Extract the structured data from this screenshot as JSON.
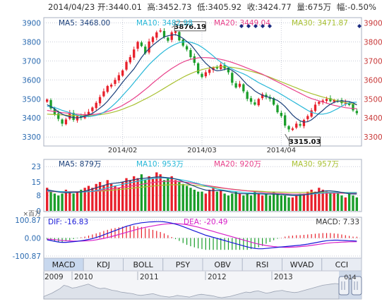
{
  "header": {
    "date": "2014/04/23",
    "open_label": "开:",
    "open": "3440.01",
    "high_label": "高:",
    "high": "3452.73",
    "low_label": "低:",
    "low": "3405.92",
    "close_label": "收:",
    "close": "3424.77",
    "volume_label": "量:",
    "volume": "675万",
    "change_label": "幅:",
    "change": "-0.50%"
  },
  "colors": {
    "up": "#e8202b",
    "down": "#1a9e2a",
    "ma5": "#1a3f7a",
    "ma10": "#28b8d8",
    "ma20": "#e8408a",
    "ma30": "#a8c030",
    "dif": "#1818d8",
    "dea": "#d820c8",
    "axis_left": "#2a6ab0",
    "axis_right": "#c83838",
    "grid": "#c8ccd8"
  },
  "chart_data": [
    {
      "type": "candlestick",
      "legend": [
        {
          "label": "MA5: 3468.00",
          "color": "#1a3f7a"
        },
        {
          "label": "MA10: 3482.98",
          "color": "#28b8d8"
        },
        {
          "label": "MA20: 3449.04",
          "color": "#e8408a"
        },
        {
          "label": "MA30: 3471.87",
          "color": "#a8c030"
        }
      ],
      "ylim": [
        3260,
        3920
      ],
      "yticks": [
        3300,
        3400,
        3500,
        3600,
        3700,
        3800,
        3900
      ],
      "ytick_labels": [
        "3300",
        "3400",
        "3500",
        "3600",
        "3700",
        "3800",
        "3900"
      ],
      "xtick_labels": [
        {
          "label": "2014/02",
          "index": 20
        },
        {
          "label": "2014/03",
          "index": 41
        },
        {
          "label": "2014/04",
          "index": 62
        }
      ],
      "annotations": [
        {
          "label": "3876.19",
          "index": 33,
          "value": 3876.19
        },
        {
          "label": "3315.03",
          "index": 63,
          "value": 3315.03
        }
      ],
      "close": [
        3497,
        3450,
        3420,
        3395,
        3370,
        3392,
        3430,
        3390,
        3410,
        3402,
        3420,
        3432,
        3455,
        3480,
        3510,
        3540,
        3568,
        3575,
        3600,
        3625,
        3650,
        3695,
        3720,
        3760,
        3800,
        3778,
        3740,
        3802,
        3825,
        3850,
        3860,
        3825,
        3806,
        3850,
        3855,
        3808,
        3780,
        3760,
        3720,
        3690,
        3635,
        3615,
        3640,
        3655,
        3665,
        3660,
        3680,
        3660,
        3640,
        3585,
        3560,
        3580,
        3540,
        3500,
        3485,
        3470,
        3500,
        3525,
        3510,
        3500,
        3470,
        3430,
        3410,
        3360,
        3340,
        3345,
        3370,
        3360,
        3390,
        3410,
        3440,
        3470,
        3485,
        3492,
        3500,
        3488,
        3494,
        3490,
        3478,
        3482,
        3468,
        3440,
        3425
      ],
      "ma5": [
        3470,
        3460,
        3448,
        3432,
        3420,
        3412,
        3407,
        3402,
        3400,
        3403,
        3410,
        3416,
        3424,
        3437,
        3452,
        3468,
        3488,
        3512,
        3536,
        3562,
        3588,
        3612,
        3635,
        3658,
        3688,
        3718,
        3744,
        3764,
        3782,
        3798,
        3814,
        3826,
        3832,
        3836,
        3838,
        3830,
        3818,
        3802,
        3786,
        3762,
        3736,
        3710,
        3688,
        3670,
        3655,
        3648,
        3650,
        3655,
        3660,
        3650,
        3636,
        3618,
        3596,
        3574,
        3560,
        3542,
        3530,
        3520,
        3512,
        3508,
        3500,
        3492,
        3478,
        3460,
        3438,
        3415,
        3398,
        3385,
        3378,
        3380,
        3390,
        3406,
        3424,
        3440,
        3458,
        3472,
        3482,
        3488,
        3490,
        3488,
        3486,
        3480,
        3468
      ],
      "ma10": [
        3462,
        3459,
        3455,
        3448,
        3440,
        3434,
        3428,
        3422,
        3415,
        3410,
        3408,
        3407,
        3410,
        3414,
        3420,
        3430,
        3442,
        3458,
        3476,
        3496,
        3518,
        3540,
        3562,
        3586,
        3610,
        3634,
        3658,
        3680,
        3700,
        3718,
        3736,
        3752,
        3766,
        3778,
        3788,
        3796,
        3800,
        3800,
        3798,
        3792,
        3784,
        3772,
        3758,
        3742,
        3726,
        3708,
        3694,
        3680,
        3668,
        3658,
        3648,
        3640,
        3632,
        3622,
        3610,
        3598,
        3586,
        3576,
        3566,
        3556,
        3546,
        3536,
        3524,
        3512,
        3500,
        3488,
        3476,
        3464,
        3452,
        3440,
        3430,
        3424,
        3420,
        3420,
        3424,
        3430,
        3440,
        3450,
        3462,
        3472,
        3478,
        3482,
        3483
      ],
      "ma20": [
        3440,
        3437,
        3434,
        3431,
        3428,
        3426,
        3424,
        3422,
        3420,
        3418,
        3417,
        3417,
        3418,
        3420,
        3424,
        3428,
        3434,
        3440,
        3448,
        3456,
        3466,
        3478,
        3490,
        3504,
        3518,
        3534,
        3550,
        3566,
        3584,
        3600,
        3616,
        3632,
        3646,
        3660,
        3672,
        3684,
        3694,
        3702,
        3708,
        3712,
        3716,
        3717,
        3717,
        3716,
        3714,
        3712,
        3708,
        3704,
        3698,
        3692,
        3685,
        3678,
        3670,
        3662,
        3654,
        3646,
        3638,
        3630,
        3620,
        3610,
        3600,
        3590,
        3580,
        3570,
        3560,
        3550,
        3540,
        3530,
        3520,
        3510,
        3502,
        3496,
        3490,
        3484,
        3478,
        3472,
        3466,
        3462,
        3458,
        3454,
        3452,
        3450,
        3449
      ],
      "ma30": [
        3420,
        3419,
        3418,
        3417,
        3416,
        3415,
        3414,
        3413,
        3412,
        3412,
        3412,
        3412,
        3413,
        3415,
        3417,
        3420,
        3424,
        3428,
        3433,
        3439,
        3446,
        3454,
        3462,
        3470,
        3480,
        3490,
        3500,
        3510,
        3521,
        3532,
        3544,
        3556,
        3568,
        3580,
        3592,
        3603,
        3614,
        3624,
        3633,
        3641,
        3648,
        3654,
        3659,
        3663,
        3666,
        3668,
        3669,
        3669,
        3668,
        3666,
        3663,
        3659,
        3655,
        3650,
        3645,
        3640,
        3634,
        3628,
        3621,
        3614,
        3606,
        3598,
        3590,
        3582,
        3574,
        3566,
        3558,
        3550,
        3542,
        3535,
        3528,
        3522,
        3516,
        3510,
        3505,
        3500,
        3495,
        3490,
        3485,
        3480,
        3477,
        3474,
        3472
      ]
    },
    {
      "type": "bar",
      "legend": [
        {
          "label": "MA5: 879万",
          "color": "#1a3f7a"
        },
        {
          "label": "MA10: 953万",
          "color": "#28b8d8"
        },
        {
          "label": "MA20: 920万",
          "color": "#e8408a"
        },
        {
          "label": "MA30: 957万",
          "color": "#a8c030"
        }
      ],
      "ylim": [
        0,
        26
      ],
      "yticks": [
        0,
        8,
        15,
        23
      ],
      "ytick_labels": [
        "0",
        "8",
        "15",
        "23"
      ],
      "unit_label": "×百万",
      "values": [
        12,
        10,
        9,
        8,
        9,
        11,
        10,
        9,
        10,
        11,
        12,
        13,
        12,
        14,
        15,
        13,
        16,
        14,
        13,
        12,
        15,
        17,
        16,
        18,
        17,
        19,
        16,
        18,
        17,
        20,
        19,
        16,
        17,
        18,
        16,
        15,
        14,
        13,
        12,
        11,
        10,
        10,
        9,
        11,
        12,
        10,
        11,
        9,
        8,
        9,
        10,
        9,
        8,
        9,
        8,
        10,
        9,
        8,
        9,
        8,
        10,
        9,
        8,
        8,
        7,
        7,
        8,
        9,
        9,
        10,
        11,
        10,
        12,
        11,
        10,
        9,
        9,
        10,
        8,
        7,
        9,
        8,
        7
      ],
      "ma5": [
        11,
        10.6,
        10.2,
        9.8,
        9.6,
        9.4,
        9.5,
        9.6,
        9.7,
        9.9,
        10.2,
        10.8,
        11.4,
        12,
        12.6,
        13.2,
        13.8,
        14.2,
        14.4,
        14.6,
        15,
        15.4,
        15.8,
        16.2,
        16.6,
        16.8,
        17,
        17.2,
        17.4,
        17.6,
        17.6,
        17.4,
        17.2,
        17,
        16.6,
        16,
        15.2,
        14.4,
        13.6,
        12.8,
        12,
        11.4,
        10.8,
        10.6,
        10.5,
        10.6,
        10.6,
        10.4,
        10,
        9.6,
        9.2,
        9,
        8.9,
        8.9,
        8.9,
        8.9,
        8.9,
        8.8,
        8.7,
        8.7,
        8.7,
        8.6,
        8.5,
        8.4,
        8.2,
        8,
        8,
        8.1,
        8.3,
        8.6,
        9,
        9.4,
        9.8,
        10.2,
        10.4,
        10.4,
        10.2,
        10,
        9.6,
        9.2,
        8.9,
        8.8,
        8.8
      ],
      "ma10": [
        10.4,
        10.3,
        10.2,
        10.1,
        10,
        9.9,
        9.8,
        9.8,
        9.8,
        9.8,
        9.9,
        10,
        10.2,
        10.6,
        11,
        11.5,
        12,
        12.5,
        13,
        13.4,
        13.8,
        14.2,
        14.6,
        15,
        15.4,
        15.8,
        16.2,
        16.5,
        16.8,
        17,
        17.1,
        17.1,
        17,
        16.8,
        16.6,
        16.3,
        16,
        15.6,
        15.2,
        14.7,
        14.2,
        13.6,
        13,
        12.4,
        11.9,
        11.4,
        11,
        10.7,
        10.4,
        10.2,
        10,
        9.8,
        9.6,
        9.4,
        9.3,
        9.2,
        9.1,
        9,
        8.9,
        8.8,
        8.8,
        8.7,
        8.6,
        8.5,
        8.4,
        8.3,
        8.3,
        8.3,
        8.4,
        8.5,
        8.7,
        8.9,
        9.1,
        9.3,
        9.5,
        9.6,
        9.6,
        9.6,
        9.6,
        9.5,
        9.5,
        9.5,
        9.5
      ],
      "ma20": [
        10,
        10,
        10,
        10,
        10,
        10,
        10,
        10,
        10,
        10,
        10,
        10,
        10.1,
        10.3,
        10.5,
        10.8,
        11.1,
        11.4,
        11.7,
        12,
        12.3,
        12.6,
        12.9,
        13.2,
        13.5,
        13.8,
        14.1,
        14.4,
        14.7,
        15,
        15.2,
        15.3,
        15.4,
        15.4,
        15.3,
        15.2,
        15,
        14.8,
        14.5,
        14.2,
        13.9,
        13.6,
        13.3,
        13,
        12.7,
        12.4,
        12.1,
        11.8,
        11.5,
        11.2,
        11,
        10.8,
        10.6,
        10.4,
        10.2,
        10,
        9.8,
        9.6,
        9.4,
        9.3,
        9.2,
        9.1,
        9,
        8.9,
        8.8,
        8.7,
        8.7,
        8.7,
        8.7,
        8.8,
        8.9,
        9,
        9.1,
        9.2,
        9.2,
        9.2,
        9.2,
        9.2,
        9.2,
        9.2,
        9.2,
        9.2,
        9.2
      ],
      "ma30": [
        10,
        10,
        10,
        10,
        10,
        10,
        10,
        10,
        10,
        10,
        10,
        10,
        10.1,
        10.2,
        10.3,
        10.4,
        10.5,
        10.7,
        10.9,
        11.1,
        11.3,
        11.5,
        11.7,
        11.9,
        12.1,
        12.3,
        12.5,
        12.7,
        12.9,
        13.1,
        13.3,
        13.4,
        13.5,
        13.6,
        13.6,
        13.6,
        13.6,
        13.5,
        13.4,
        13.3,
        13.1,
        12.9,
        12.7,
        12.5,
        12.3,
        12.1,
        11.9,
        11.7,
        11.5,
        11.3,
        11.1,
        10.9,
        10.7,
        10.5,
        10.4,
        10.3,
        10.2,
        10.1,
        10,
        9.9,
        9.8,
        9.8,
        9.7,
        9.7,
        9.6,
        9.6,
        9.6,
        9.6,
        9.6,
        9.6,
        9.6,
        9.6,
        9.6,
        9.6,
        9.6,
        9.6,
        9.6,
        9.6,
        9.6,
        9.6,
        9.6,
        9.6,
        9.6
      ]
    },
    {
      "type": "macd",
      "legend": [
        {
          "label": "DIF: -16.83",
          "color": "#1818d8"
        },
        {
          "label": "DEA: -20.49",
          "color": "#d820c8"
        },
        {
          "label": "MACD: 7.33",
          "color": "#333333"
        }
      ],
      "ylim": [
        -100.87,
        100.87
      ],
      "yticks": [
        100.87,
        0,
        -100.87
      ],
      "ytick_labels": [
        "100.87",
        "0.00",
        "-100.87"
      ],
      "dif": [
        -10,
        -14,
        -18,
        -22,
        -24,
        -24,
        -22,
        -20,
        -18,
        -15,
        -12,
        -8,
        -3,
        3,
        10,
        18,
        26,
        34,
        42,
        50,
        58,
        66,
        72,
        78,
        82,
        86,
        88,
        90,
        91,
        92,
        92,
        91,
        88,
        84,
        78,
        72,
        64,
        56,
        48,
        40,
        32,
        24,
        16,
        10,
        4,
        -2,
        -8,
        -14,
        -20,
        -26,
        -32,
        -38,
        -44,
        -50,
        -54,
        -58,
        -60,
        -60,
        -58,
        -56,
        -54,
        -52,
        -50,
        -48,
        -46,
        -44,
        -42,
        -40,
        -37,
        -34,
        -30,
        -26,
        -22,
        -18,
        -15,
        -13,
        -12,
        -12,
        -13,
        -14,
        -15,
        -16,
        -16.83
      ],
      "dea": [
        -6,
        -7,
        -9,
        -11,
        -13,
        -15,
        -16,
        -17,
        -17,
        -17,
        -16,
        -15,
        -13,
        -10,
        -6,
        -2,
        3,
        8,
        14,
        20,
        26,
        32,
        38,
        44,
        50,
        55,
        60,
        64,
        68,
        72,
        75,
        78,
        80,
        81,
        81,
        80,
        78,
        75,
        71,
        66,
        61,
        55,
        49,
        43,
        37,
        31,
        25,
        19,
        13,
        7,
        1,
        -5,
        -11,
        -17,
        -23,
        -29,
        -34,
        -38,
        -42,
        -45,
        -48,
        -50,
        -51,
        -52,
        -52,
        -51,
        -50,
        -48,
        -46,
        -44,
        -41,
        -38,
        -35,
        -32,
        -29,
        -27,
        -25,
        -24,
        -23,
        -22,
        -21,
        -20.8,
        -20.49
      ],
      "macd": [
        -8,
        -14,
        -18,
        -22,
        -22,
        -18,
        -12,
        -6,
        -2,
        4,
        8,
        14,
        20,
        26,
        32,
        40,
        46,
        52,
        56,
        60,
        64,
        68,
        68,
        68,
        64,
        62,
        56,
        52,
        46,
        40,
        34,
        26,
        16,
        6,
        -6,
        -16,
        -28,
        -38,
        -46,
        -52,
        -58,
        -62,
        -66,
        -66,
        -66,
        -66,
        -66,
        -66,
        -66,
        -66,
        -66,
        -66,
        -66,
        -66,
        -62,
        -58,
        -52,
        -44,
        -32,
        -22,
        -12,
        -4,
        2,
        8,
        12,
        14,
        16,
        16,
        18,
        20,
        22,
        24,
        26,
        28,
        28,
        28,
        26,
        24,
        20,
        16,
        12,
        8,
        7.33
      ]
    }
  ],
  "tabs": [
    {
      "label": "MACD",
      "active": true
    },
    {
      "label": "KDJ",
      "active": false
    },
    {
      "label": "BOLL",
      "active": false
    },
    {
      "label": "PSY",
      "active": false
    },
    {
      "label": "OBV",
      "active": false
    },
    {
      "label": "RSI",
      "active": false
    },
    {
      "label": "WVAD",
      "active": false
    },
    {
      "label": "CCI",
      "active": false
    }
  ],
  "timeline": {
    "years": [
      "2009",
      "2010",
      "2011",
      "2012",
      "2013"
    ],
    "handle_label": "014",
    "series": [
      2300,
      2450,
      2600,
      2800,
      3000,
      3300,
      3200,
      3050,
      3100,
      3200,
      3300,
      3400,
      3250,
      3100,
      3000,
      3050,
      2950,
      2850,
      2800,
      2700,
      2650,
      2600,
      2550,
      2450,
      2400,
      2450,
      2500,
      2550,
      2450,
      2350,
      2300,
      2250,
      2300,
      2400,
      2350,
      2300,
      2250,
      2350,
      2450,
      2500,
      2450,
      2400,
      2350,
      2250,
      2200,
      2250,
      2300,
      2400,
      2500,
      2600,
      2700,
      2650,
      2750,
      2800,
      2700,
      2600,
      2650,
      2750,
      2800,
      2850,
      2750,
      2700,
      2650,
      2700,
      2800,
      2900,
      3000,
      3100,
      3200,
      3300,
      3350,
      3400,
      3450,
      3420
    ]
  },
  "top_right_icons": [
    "close-icon"
  ]
}
